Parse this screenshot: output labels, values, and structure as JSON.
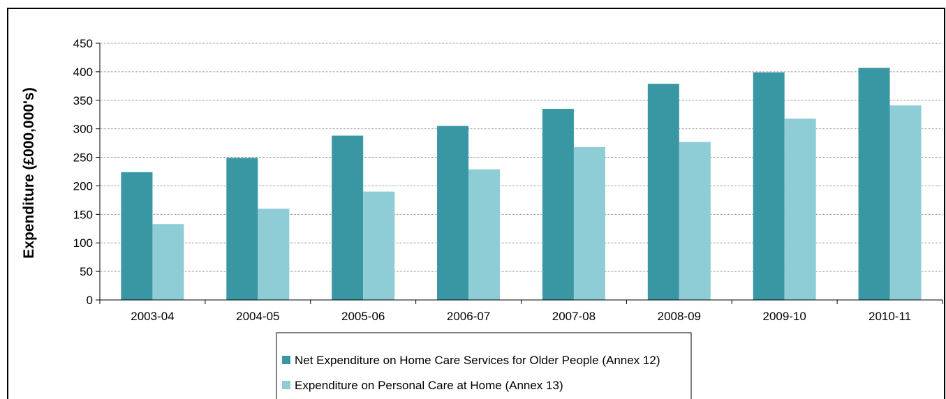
{
  "chart_data": {
    "type": "bar",
    "title": "",
    "xlabel": "",
    "ylabel": "Expenditure (£000,000's)",
    "ylim": [
      0,
      450
    ],
    "yticks": [
      0,
      50,
      100,
      150,
      200,
      250,
      300,
      350,
      400,
      450
    ],
    "grid": true,
    "legend_position": "bottom",
    "categories": [
      "2003-04",
      "2004-05",
      "2005-06",
      "2006-07",
      "2007-08",
      "2008-09",
      "2009-10",
      "2010-11"
    ],
    "series": [
      {
        "name": "Net Expenditure on Home Care Services for Older People (Annex 12)",
        "color": "#3897a2",
        "values": [
          224,
          249,
          288,
          305,
          335,
          379,
          399,
          407
        ]
      },
      {
        "name": "Expenditure on Personal Care at Home (Annex 13)",
        "color": "#8fcdd6",
        "values": [
          133,
          160,
          190,
          229,
          268,
          277,
          318,
          341
        ]
      }
    ]
  }
}
